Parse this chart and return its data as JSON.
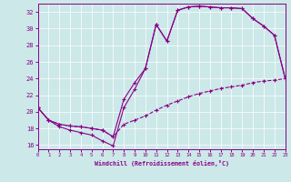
{
  "xlabel": "Windchill (Refroidissement éolien,°C)",
  "xlim": [
    0,
    23
  ],
  "ylim": [
    15.5,
    33.0
  ],
  "yticks": [
    16,
    18,
    20,
    22,
    24,
    26,
    28,
    30,
    32
  ],
  "xticks": [
    0,
    1,
    2,
    3,
    4,
    5,
    6,
    7,
    8,
    9,
    10,
    11,
    12,
    13,
    14,
    15,
    16,
    17,
    18,
    19,
    20,
    21,
    22,
    23
  ],
  "bg_color": "#cce8e8",
  "line_color": "#880088",
  "line1_x": [
    0,
    1,
    2,
    3,
    4,
    5,
    6,
    7,
    8,
    9,
    10,
    11,
    12,
    13,
    14,
    15,
    16,
    17,
    18,
    19,
    20,
    21,
    22,
    23
  ],
  "line1_y": [
    20.5,
    19.0,
    18.2,
    17.8,
    17.5,
    17.2,
    16.5,
    15.9,
    20.5,
    22.7,
    25.2,
    30.5,
    28.5,
    32.2,
    32.6,
    32.7,
    32.6,
    32.5,
    32.5,
    32.4,
    31.2,
    30.3,
    29.2,
    24.0
  ],
  "line2_x": [
    0,
    1,
    2,
    3,
    4,
    5,
    6,
    7,
    8,
    9,
    10,
    11,
    12,
    13,
    14,
    15,
    16,
    17,
    18,
    19,
    20,
    21,
    22,
    23
  ],
  "line2_y": [
    20.5,
    19.0,
    18.5,
    18.3,
    18.2,
    18.0,
    17.8,
    17.0,
    21.5,
    23.5,
    25.2,
    30.5,
    28.5,
    32.2,
    32.6,
    32.7,
    32.6,
    32.5,
    32.5,
    32.4,
    31.2,
    30.3,
    29.2,
    24.0
  ],
  "line3_x": [
    0,
    1,
    2,
    3,
    4,
    5,
    6,
    7,
    8,
    9,
    10,
    11,
    12,
    13,
    14,
    15,
    16,
    17,
    18,
    19,
    20,
    21,
    22,
    23
  ],
  "line3_y": [
    20.5,
    19.0,
    18.5,
    18.3,
    18.2,
    18.0,
    17.8,
    17.0,
    18.5,
    19.0,
    19.5,
    20.2,
    20.8,
    21.3,
    21.8,
    22.2,
    22.5,
    22.8,
    23.0,
    23.2,
    23.5,
    23.7,
    23.8,
    24.0
  ]
}
